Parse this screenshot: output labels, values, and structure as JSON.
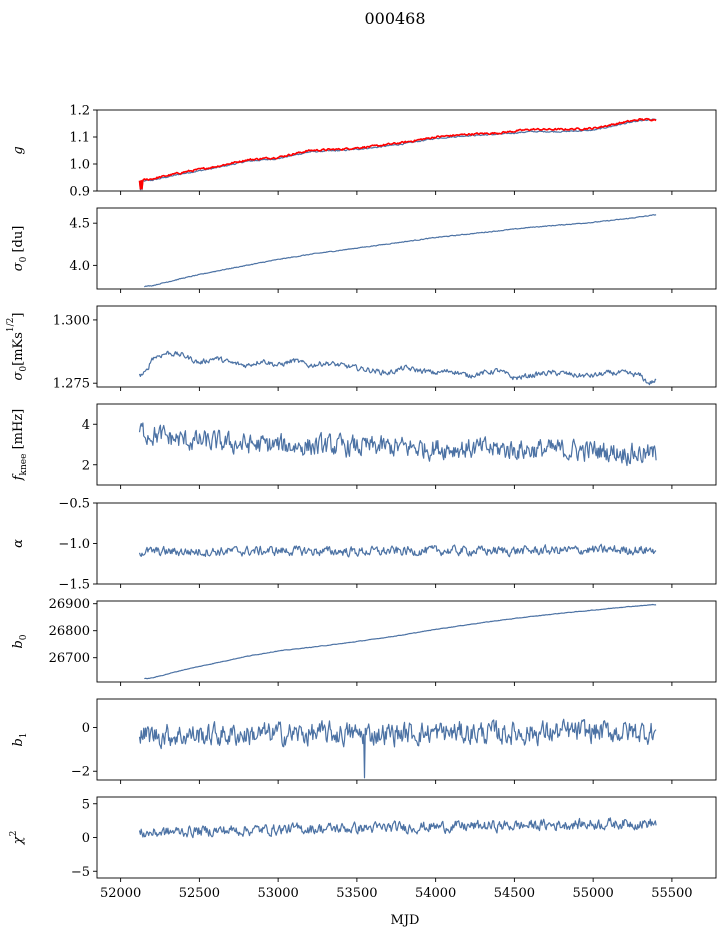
{
  "figure": {
    "title": "000468",
    "xlabel": "MJD",
    "xlim": [
      51850,
      55780
    ],
    "xticks": [
      52000,
      52500,
      53000,
      53500,
      54000,
      54500,
      55000,
      55500
    ],
    "colors": {
      "line": "#4c72a4",
      "overlay": "#ff0000"
    }
  },
  "chart_data": [
    {
      "type": "line",
      "id": "g",
      "ylabel": "g",
      "ylim": [
        0.9,
        1.2
      ],
      "yticks": [
        0.9,
        1.0,
        1.1,
        1.2
      ],
      "tick_decimals": 1,
      "series": [
        {
          "color": "#4c72a4",
          "noise": 0.002,
          "x": [
            52120,
            52200,
            52400,
            52600,
            52800,
            53000,
            53200,
            53400,
            53600,
            53800,
            54000,
            54200,
            54400,
            54600,
            54800,
            55000,
            55200,
            55300,
            55400
          ],
          "y": [
            0.935,
            0.94,
            0.965,
            0.985,
            1.01,
            1.02,
            1.045,
            1.05,
            1.06,
            1.075,
            1.095,
            1.105,
            1.11,
            1.12,
            1.12,
            1.125,
            1.15,
            1.16,
            1.165
          ]
        },
        {
          "color": "#ff0000",
          "noise": 0.003,
          "x": [
            52120,
            52200,
            52400,
            52600,
            52800,
            53000,
            53200,
            53400,
            53600,
            53800,
            54000,
            54200,
            54400,
            54600,
            54800,
            55000,
            55200,
            55300,
            55400
          ],
          "y": [
            0.938,
            0.945,
            0.97,
            0.99,
            1.015,
            1.025,
            1.05,
            1.055,
            1.065,
            1.08,
            1.1,
            1.11,
            1.115,
            1.128,
            1.128,
            1.132,
            1.155,
            1.165,
            1.165
          ]
        }
      ]
    },
    {
      "type": "line",
      "id": "sigma0",
      "ylabel": "σ0 [du]",
      "ylim": [
        3.72,
        4.68
      ],
      "yticks": [
        4.0,
        4.5
      ],
      "tick_decimals": 1,
      "series": [
        {
          "color": "#4c72a4",
          "noise": 0.004,
          "x": [
            52150,
            52200,
            52400,
            52600,
            52800,
            53000,
            53200,
            53400,
            53600,
            53800,
            54000,
            54200,
            54400,
            54600,
            54800,
            55000,
            55200,
            55400
          ],
          "y": [
            3.75,
            3.76,
            3.85,
            3.93,
            4.0,
            4.07,
            4.13,
            4.18,
            4.23,
            4.28,
            4.33,
            4.37,
            4.41,
            4.45,
            4.48,
            4.51,
            4.55,
            4.6
          ]
        }
      ]
    },
    {
      "type": "line",
      "id": "sigma0mk",
      "ylabel": "σ0[mKs^1/2]",
      "ylim": [
        1.2735,
        1.3055
      ],
      "yticks": [
        1.275,
        1.3
      ],
      "tick_decimals": 3,
      "series": [
        {
          "color": "#4c72a4",
          "noise": 0.0009,
          "x": [
            52120,
            52160,
            52200,
            52300,
            52400,
            52500,
            52600,
            52700,
            52800,
            52900,
            53000,
            53100,
            53200,
            53300,
            53400,
            53500,
            53600,
            53700,
            53800,
            53900,
            54000,
            54100,
            54200,
            54300,
            54400,
            54500,
            54600,
            54700,
            54800,
            54900,
            55000,
            55100,
            55200,
            55300,
            55350,
            55400
          ],
          "y": [
            1.278,
            1.279,
            1.285,
            1.287,
            1.286,
            1.283,
            1.285,
            1.283,
            1.282,
            1.284,
            1.282,
            1.284,
            1.282,
            1.283,
            1.282,
            1.281,
            1.28,
            1.279,
            1.281,
            1.28,
            1.279,
            1.28,
            1.278,
            1.279,
            1.28,
            1.277,
            1.278,
            1.279,
            1.279,
            1.278,
            1.278,
            1.279,
            1.279,
            1.278,
            1.275,
            1.276
          ]
        }
      ]
    },
    {
      "type": "line",
      "id": "fknee",
      "ylabel": "fknee [mHz]",
      "ylim": [
        1.0,
        5.0
      ],
      "yticks": [
        2,
        4
      ],
      "tick_decimals": 0,
      "series": [
        {
          "color": "#4c72a4",
          "noise": 0.45,
          "x": [
            52120,
            52200,
            52400,
            52600,
            52800,
            53000,
            53400,
            53800,
            54200,
            54600,
            55000,
            55400
          ],
          "y": [
            3.7,
            3.5,
            3.2,
            3.1,
            3.0,
            2.95,
            2.9,
            2.85,
            2.8,
            2.75,
            2.7,
            2.5
          ]
        }
      ]
    },
    {
      "type": "line",
      "id": "alpha",
      "ylabel": "α",
      "ylim": [
        -1.5,
        -0.5
      ],
      "yticks": [
        -1.5,
        -1.0,
        -0.5
      ],
      "tick_decimals": 1,
      "series": [
        {
          "color": "#4c72a4",
          "noise": 0.05,
          "x": [
            52120,
            52500,
            53000,
            53500,
            54000,
            54500,
            55000,
            55400
          ],
          "y": [
            -1.1,
            -1.1,
            -1.09,
            -1.1,
            -1.09,
            -1.09,
            -1.08,
            -1.08
          ]
        }
      ]
    },
    {
      "type": "line",
      "id": "b0",
      "ylabel": "b0",
      "ylim": [
        26610,
        26910
      ],
      "yticks": [
        26700,
        26800,
        26900
      ],
      "tick_decimals": 0,
      "series": [
        {
          "color": "#4c72a4",
          "noise": 0.8,
          "x": [
            52150,
            52200,
            52400,
            52600,
            52800,
            53000,
            53200,
            53400,
            53600,
            53800,
            54000,
            54200,
            54400,
            54600,
            54800,
            55000,
            55200,
            55400
          ],
          "y": [
            26622,
            26625,
            26655,
            26680,
            26705,
            26725,
            26738,
            26752,
            26768,
            26785,
            26805,
            26822,
            26838,
            26852,
            26865,
            26876,
            26888,
            26897
          ]
        }
      ]
    },
    {
      "type": "line",
      "id": "b1",
      "ylabel": "b1",
      "ylim": [
        -2.4,
        1.3
      ],
      "yticks": [
        -2,
        0
      ],
      "tick_decimals": 0,
      "series": [
        {
          "color": "#4c72a4",
          "noise": 0.45,
          "x": [
            52120,
            52500,
            53000,
            53500,
            54000,
            54500,
            55000,
            55400
          ],
          "y": [
            -0.35,
            -0.35,
            -0.3,
            -0.3,
            -0.25,
            -0.25,
            -0.2,
            -0.2
          ]
        }
      ]
    },
    {
      "type": "line",
      "id": "chi2",
      "ylabel": "χ2",
      "ylim": [
        -6,
        6
      ],
      "yticks": [
        -5,
        0,
        5
      ],
      "tick_decimals": 0,
      "series": [
        {
          "color": "#4c72a4",
          "noise": 0.7,
          "x": [
            52120,
            52400,
            52800,
            53200,
            53600,
            54000,
            54400,
            54800,
            55200,
            55400
          ],
          "y": [
            0.6,
            0.9,
            1.1,
            1.3,
            1.4,
            1.6,
            1.7,
            1.9,
            2.1,
            2.1
          ]
        }
      ]
    }
  ]
}
